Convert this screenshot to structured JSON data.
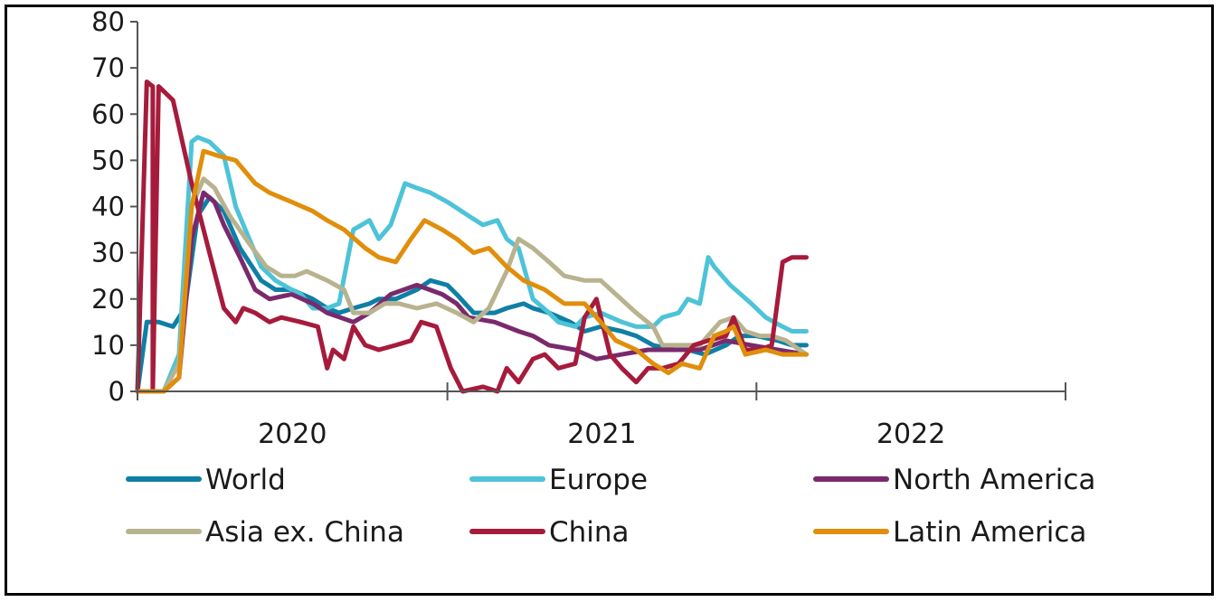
{
  "chart_data": {
    "type": "line",
    "x_axis": {
      "type": "date",
      "range": [
        "2020-01-01",
        "2023-01-01"
      ],
      "tick_labels": [
        "2020",
        "2021",
        "2022"
      ]
    },
    "y_axis": {
      "range": [
        0,
        80
      ],
      "ticks": [
        0,
        10,
        20,
        30,
        40,
        50,
        60,
        70,
        80
      ]
    },
    "grid": false,
    "legend_position": "bottom",
    "series": [
      {
        "name": "World",
        "color": "#0f7fa4",
        "points": [
          [
            "2020-01-01",
            0
          ],
          [
            "2020-01-12",
            15
          ],
          [
            "2020-01-26",
            15
          ],
          [
            "2020-02-12",
            14
          ],
          [
            "2020-02-26",
            18
          ],
          [
            "2020-03-12",
            38
          ],
          [
            "2020-03-26",
            42
          ],
          [
            "2020-04-12",
            39
          ],
          [
            "2020-05-01",
            31
          ],
          [
            "2020-05-26",
            24
          ],
          [
            "2020-06-12",
            22
          ],
          [
            "2020-07-01",
            22
          ],
          [
            "2020-07-26",
            20
          ],
          [
            "2020-08-12",
            18
          ],
          [
            "2020-08-26",
            17
          ],
          [
            "2020-09-12",
            18
          ],
          [
            "2020-10-01",
            19
          ],
          [
            "2020-10-12",
            20
          ],
          [
            "2020-11-01",
            20
          ],
          [
            "2020-11-26",
            22
          ],
          [
            "2020-12-12",
            24
          ],
          [
            "2021-01-01",
            23
          ],
          [
            "2021-01-12",
            21
          ],
          [
            "2021-02-01",
            17
          ],
          [
            "2021-02-26",
            17
          ],
          [
            "2021-03-12",
            18
          ],
          [
            "2021-04-01",
            19
          ],
          [
            "2021-04-12",
            18
          ],
          [
            "2021-05-01",
            17
          ],
          [
            "2021-05-26",
            15
          ],
          [
            "2021-06-12",
            13
          ],
          [
            "2021-07-01",
            14
          ],
          [
            "2021-07-26",
            13
          ],
          [
            "2021-08-12",
            12
          ],
          [
            "2021-09-01",
            10
          ],
          [
            "2021-09-26",
            9
          ],
          [
            "2021-10-12",
            9
          ],
          [
            "2021-11-01",
            8
          ],
          [
            "2021-11-26",
            10
          ],
          [
            "2021-12-12",
            12
          ],
          [
            "2022-01-01",
            12
          ],
          [
            "2022-01-26",
            11
          ],
          [
            "2022-02-12",
            10
          ],
          [
            "2022-03-01",
            10
          ]
        ]
      },
      {
        "name": "Europe",
        "color": "#4dc3d8",
        "points": [
          [
            "2020-01-01",
            0
          ],
          [
            "2020-02-01",
            0
          ],
          [
            "2020-02-19",
            8
          ],
          [
            "2020-03-05",
            54
          ],
          [
            "2020-03-12",
            55
          ],
          [
            "2020-03-26",
            54
          ],
          [
            "2020-04-12",
            51
          ],
          [
            "2020-04-26",
            40
          ],
          [
            "2020-05-12",
            33
          ],
          [
            "2020-05-26",
            27
          ],
          [
            "2020-06-12",
            24
          ],
          [
            "2020-07-01",
            22
          ],
          [
            "2020-07-12",
            21
          ],
          [
            "2020-07-26",
            18
          ],
          [
            "2020-08-12",
            18
          ],
          [
            "2020-08-26",
            19
          ],
          [
            "2020-09-12",
            35
          ],
          [
            "2020-10-01",
            37
          ],
          [
            "2020-10-12",
            33
          ],
          [
            "2020-10-26",
            36
          ],
          [
            "2020-11-12",
            45
          ],
          [
            "2020-11-26",
            44
          ],
          [
            "2020-12-12",
            43
          ],
          [
            "2021-01-01",
            41
          ],
          [
            "2021-01-26",
            38
          ],
          [
            "2021-02-12",
            36
          ],
          [
            "2021-03-01",
            37
          ],
          [
            "2021-03-12",
            33
          ],
          [
            "2021-03-26",
            31
          ],
          [
            "2021-04-12",
            20
          ],
          [
            "2021-05-01",
            17
          ],
          [
            "2021-05-12",
            15
          ],
          [
            "2021-06-01",
            14
          ],
          [
            "2021-06-12",
            16
          ],
          [
            "2021-07-01",
            17
          ],
          [
            "2021-07-26",
            15
          ],
          [
            "2021-08-12",
            14
          ],
          [
            "2021-09-01",
            14
          ],
          [
            "2021-09-12",
            16
          ],
          [
            "2021-10-01",
            17
          ],
          [
            "2021-10-12",
            20
          ],
          [
            "2021-10-26",
            19
          ],
          [
            "2021-11-05",
            29
          ],
          [
            "2021-11-12",
            27
          ],
          [
            "2021-12-01",
            23
          ],
          [
            "2021-12-26",
            19
          ],
          [
            "2022-01-12",
            16
          ],
          [
            "2022-02-01",
            14
          ],
          [
            "2022-02-12",
            13
          ],
          [
            "2022-03-01",
            13
          ]
        ]
      },
      {
        "name": "North America",
        "color": "#7a2a6c",
        "points": [
          [
            "2020-01-01",
            0
          ],
          [
            "2020-02-01",
            0
          ],
          [
            "2020-02-19",
            3
          ],
          [
            "2020-03-05",
            33
          ],
          [
            "2020-03-19",
            43
          ],
          [
            "2020-04-01",
            41
          ],
          [
            "2020-04-12",
            36
          ],
          [
            "2020-05-01",
            29
          ],
          [
            "2020-05-19",
            22
          ],
          [
            "2020-06-05",
            20
          ],
          [
            "2020-07-01",
            21
          ],
          [
            "2020-07-26",
            19
          ],
          [
            "2020-08-12",
            17
          ],
          [
            "2020-09-12",
            15
          ],
          [
            "2020-10-01",
            17
          ],
          [
            "2020-10-26",
            21
          ],
          [
            "2020-11-26",
            23
          ],
          [
            "2020-12-26",
            21
          ],
          [
            "2021-01-12",
            19
          ],
          [
            "2021-01-26",
            16
          ],
          [
            "2021-02-26",
            15
          ],
          [
            "2021-03-26",
            13
          ],
          [
            "2021-04-12",
            12
          ],
          [
            "2021-05-01",
            10
          ],
          [
            "2021-06-01",
            9
          ],
          [
            "2021-06-26",
            7
          ],
          [
            "2021-07-26",
            8
          ],
          [
            "2021-08-26",
            9
          ],
          [
            "2021-09-26",
            9
          ],
          [
            "2021-10-26",
            9
          ],
          [
            "2021-11-26",
            11
          ],
          [
            "2021-12-26",
            10
          ],
          [
            "2022-01-26",
            9
          ],
          [
            "2022-03-01",
            8
          ]
        ]
      },
      {
        "name": "Asia ex. China",
        "color": "#b8b38e",
        "points": [
          [
            "2020-01-01",
            0
          ],
          [
            "2020-02-01",
            0
          ],
          [
            "2020-02-19",
            6
          ],
          [
            "2020-03-05",
            40
          ],
          [
            "2020-03-19",
            46
          ],
          [
            "2020-04-01",
            44
          ],
          [
            "2020-04-19",
            38
          ],
          [
            "2020-05-12",
            32
          ],
          [
            "2020-06-01",
            27
          ],
          [
            "2020-06-19",
            25
          ],
          [
            "2020-07-05",
            25
          ],
          [
            "2020-07-19",
            26
          ],
          [
            "2020-08-12",
            24
          ],
          [
            "2020-09-01",
            22
          ],
          [
            "2020-09-12",
            17
          ],
          [
            "2020-10-01",
            17
          ],
          [
            "2020-10-19",
            19
          ],
          [
            "2020-11-05",
            19
          ],
          [
            "2020-11-26",
            18
          ],
          [
            "2020-12-19",
            19
          ],
          [
            "2021-01-12",
            17
          ],
          [
            "2021-02-01",
            15
          ],
          [
            "2021-02-19",
            18
          ],
          [
            "2021-03-12",
            26
          ],
          [
            "2021-03-26",
            33
          ],
          [
            "2021-04-12",
            31
          ],
          [
            "2021-05-01",
            28
          ],
          [
            "2021-05-19",
            25
          ],
          [
            "2021-06-12",
            24
          ],
          [
            "2021-07-01",
            24
          ],
          [
            "2021-07-19",
            21
          ],
          [
            "2021-08-12",
            17
          ],
          [
            "2021-09-01",
            14
          ],
          [
            "2021-09-12",
            10
          ],
          [
            "2021-10-01",
            10
          ],
          [
            "2021-10-26",
            10
          ],
          [
            "2021-11-19",
            15
          ],
          [
            "2021-12-05",
            16
          ],
          [
            "2021-12-19",
            13
          ],
          [
            "2022-01-05",
            12
          ],
          [
            "2022-01-19",
            12
          ],
          [
            "2022-02-05",
            11
          ],
          [
            "2022-03-01",
            8
          ]
        ]
      },
      {
        "name": "China",
        "color": "#a61b3c",
        "points": [
          [
            "2020-01-01",
            0
          ],
          [
            "2020-01-12",
            67
          ],
          [
            "2020-01-19",
            66
          ],
          [
            "2020-01-19",
            0
          ],
          [
            "2020-01-26",
            66
          ],
          [
            "2020-02-12",
            63
          ],
          [
            "2020-03-05",
            45
          ],
          [
            "2020-03-26",
            30
          ],
          [
            "2020-04-12",
            18
          ],
          [
            "2020-04-26",
            15
          ],
          [
            "2020-05-05",
            18
          ],
          [
            "2020-05-19",
            17
          ],
          [
            "2020-06-05",
            15
          ],
          [
            "2020-06-19",
            16
          ],
          [
            "2020-07-12",
            15
          ],
          [
            "2020-08-01",
            14
          ],
          [
            "2020-08-12",
            5
          ],
          [
            "2020-08-19",
            9
          ],
          [
            "2020-09-01",
            7
          ],
          [
            "2020-09-12",
            14
          ],
          [
            "2020-09-26",
            10
          ],
          [
            "2020-10-12",
            9
          ],
          [
            "2020-11-01",
            10
          ],
          [
            "2020-11-19",
            11
          ],
          [
            "2020-12-01",
            15
          ],
          [
            "2020-12-19",
            14
          ],
          [
            "2021-01-05",
            5
          ],
          [
            "2021-01-19",
            0
          ],
          [
            "2021-02-12",
            1
          ],
          [
            "2021-03-01",
            0
          ],
          [
            "2021-03-12",
            5
          ],
          [
            "2021-03-26",
            2
          ],
          [
            "2021-04-12",
            7
          ],
          [
            "2021-04-26",
            8
          ],
          [
            "2021-05-12",
            5
          ],
          [
            "2021-06-01",
            6
          ],
          [
            "2021-06-12",
            16
          ],
          [
            "2021-06-26",
            20
          ],
          [
            "2021-07-12",
            8
          ],
          [
            "2021-07-26",
            5
          ],
          [
            "2021-08-12",
            2
          ],
          [
            "2021-08-26",
            5
          ],
          [
            "2021-09-12",
            5
          ],
          [
            "2021-10-01",
            6
          ],
          [
            "2021-10-19",
            10
          ],
          [
            "2021-11-05",
            11
          ],
          [
            "2021-11-26",
            12
          ],
          [
            "2021-12-05",
            16
          ],
          [
            "2021-12-19",
            9
          ],
          [
            "2022-01-05",
            9
          ],
          [
            "2022-01-19",
            10
          ],
          [
            "2022-02-01",
            28
          ],
          [
            "2022-02-12",
            29
          ],
          [
            "2022-03-01",
            29
          ]
        ]
      },
      {
        "name": "Latin America",
        "color": "#e08e0b",
        "points": [
          [
            "2020-01-01",
            0
          ],
          [
            "2020-02-01",
            0
          ],
          [
            "2020-02-19",
            3
          ],
          [
            "2020-03-05",
            40
          ],
          [
            "2020-03-19",
            52
          ],
          [
            "2020-04-05",
            51
          ],
          [
            "2020-04-26",
            50
          ],
          [
            "2020-05-19",
            45
          ],
          [
            "2020-06-05",
            43
          ],
          [
            "2020-07-01",
            41
          ],
          [
            "2020-07-26",
            39
          ],
          [
            "2020-08-12",
            37
          ],
          [
            "2020-09-01",
            35
          ],
          [
            "2020-09-26",
            31
          ],
          [
            "2020-10-12",
            29
          ],
          [
            "2020-11-01",
            28
          ],
          [
            "2020-11-19",
            33
          ],
          [
            "2020-12-05",
            37
          ],
          [
            "2020-12-26",
            35
          ],
          [
            "2021-01-12",
            33
          ],
          [
            "2021-02-01",
            30
          ],
          [
            "2021-02-19",
            31
          ],
          [
            "2021-03-12",
            27
          ],
          [
            "2021-04-01",
            24
          ],
          [
            "2021-04-26",
            22
          ],
          [
            "2021-05-19",
            19
          ],
          [
            "2021-06-12",
            19
          ],
          [
            "2021-07-01",
            15
          ],
          [
            "2021-07-19",
            11
          ],
          [
            "2021-08-12",
            9
          ],
          [
            "2021-09-01",
            6
          ],
          [
            "2021-09-19",
            4
          ],
          [
            "2021-10-05",
            6
          ],
          [
            "2021-10-26",
            5
          ],
          [
            "2021-11-12",
            12
          ],
          [
            "2021-11-26",
            13
          ],
          [
            "2021-12-05",
            14
          ],
          [
            "2021-12-19",
            8
          ],
          [
            "2022-01-12",
            9
          ],
          [
            "2022-02-01",
            8
          ],
          [
            "2022-03-01",
            8
          ]
        ]
      }
    ]
  }
}
